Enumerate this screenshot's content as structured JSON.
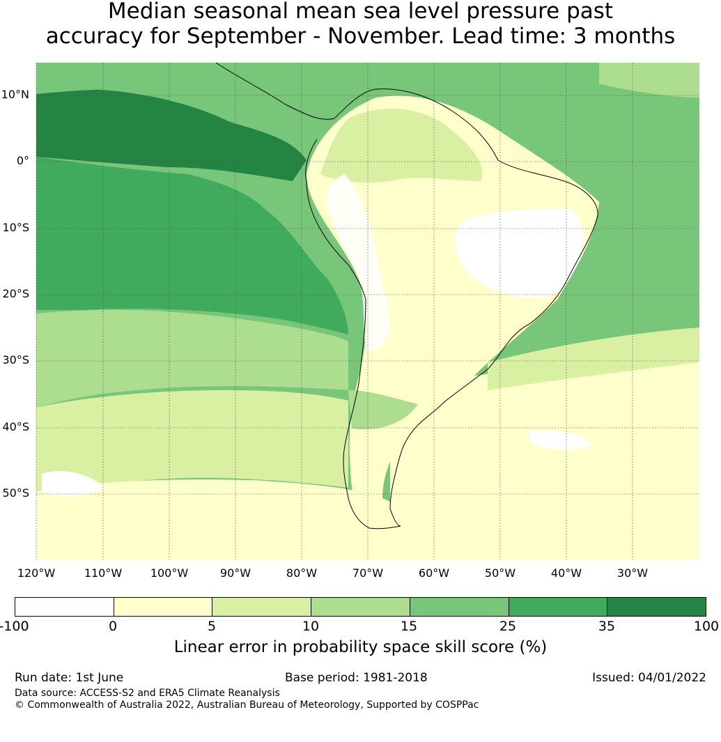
{
  "title": {
    "line1": "Median seasonal mean sea level pressure past",
    "line2": "accuracy for September - November. Lead time: 3 months"
  },
  "map": {
    "region": "South America",
    "lat_labels": [
      "10°N",
      "0°",
      "10°S",
      "20°S",
      "30°S",
      "40°S",
      "50°S"
    ],
    "lon_labels": [
      "120°W",
      "110°W",
      "100°W",
      "90°W",
      "80°W",
      "70°W",
      "60°W",
      "50°W",
      "40°W",
      "30°W"
    ],
    "gridlines": true
  },
  "colorbar": {
    "label": "Linear error in probability space skill score (%)",
    "ticks": [
      "-100",
      "0",
      "5",
      "10",
      "15",
      "25",
      "35",
      "100"
    ],
    "colors": [
      "#ffffff",
      "#ffffcc",
      "#d9f0a3",
      "#addd8e",
      "#78c679",
      "#41ab5d",
      "#238443"
    ]
  },
  "footer": {
    "run_date": "Run date: 1st June",
    "base_period": "Base period: 1981-2018",
    "issued": "Issued: 04/01/2022",
    "data_source": "Data source: ACCESS-S2 and ERA5 Climate Reanalysis",
    "copyright": "© Commonwealth of Australia 2022, Australian Bureau of Meteorology, Supported by COSPPac"
  }
}
